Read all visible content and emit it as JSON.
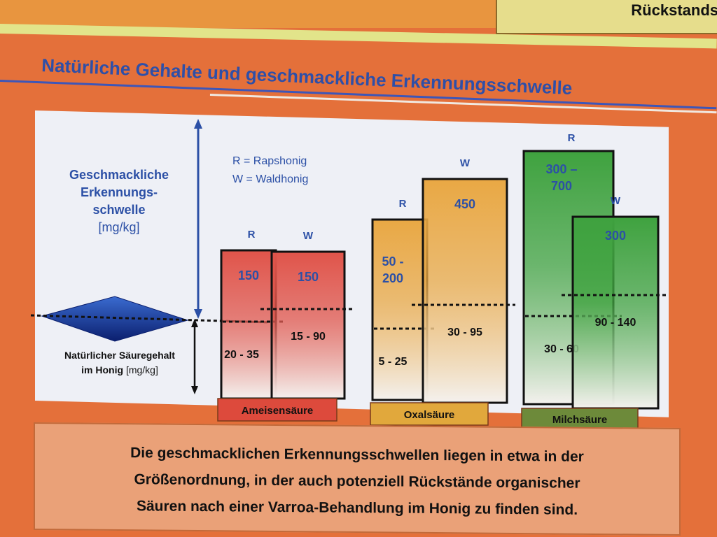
{
  "header": {
    "corner_label": "Rückstands"
  },
  "title": "Natürliche Gehalte und geschmackliche Erkennungsschwelle",
  "chart_data": {
    "type": "bar",
    "y_label": {
      "line1": "Geschmackliche",
      "line2": "Erkennungs-",
      "line3": "schwelle",
      "unit": "[mg/kg]"
    },
    "natural_label": {
      "line1": "Natürlicher Säuregehalt",
      "line2": "im Honig",
      "unit": "[mg/kg]"
    },
    "legend": [
      "R = Rapshonig",
      "W = Waldhonig"
    ],
    "categories": [
      {
        "name": "Ameisensäure",
        "color": "#e0544a",
        "bars": [
          {
            "series": "R",
            "threshold": "150",
            "natural": "20 - 35"
          },
          {
            "series": "W",
            "threshold": "150",
            "natural": "15 - 90"
          }
        ]
      },
      {
        "name": "Oxalsäure",
        "color": "#e9a844",
        "bars": [
          {
            "series": "R",
            "threshold": "50 - 200",
            "natural": "5 - 25"
          },
          {
            "series": "W",
            "threshold": "450",
            "natural": "30 - 95"
          }
        ]
      },
      {
        "name": "Milchsäure",
        "color": "#3fa23f",
        "bars": [
          {
            "series": "R",
            "threshold": "300 – 700",
            "natural": "30 - 60"
          },
          {
            "series": "W",
            "threshold": "300",
            "natural": "90 - 140"
          }
        ]
      }
    ]
  },
  "note": {
    "line1": "Die geschmacklichen Erkennungsschwellen liegen in etwa in der",
    "line2": "Größenordnung, in der auch potenziell Rückstände organischer",
    "line3": "Säuren nach einer Varroa-Behandlung im Honig zu finden sind."
  }
}
